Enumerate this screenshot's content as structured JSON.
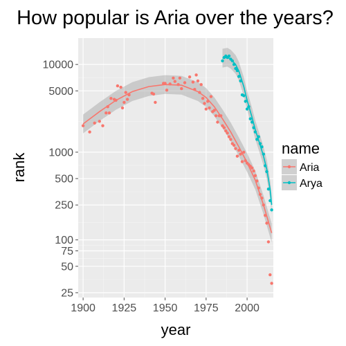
{
  "chart_data": {
    "type": "scatter",
    "title": "How popular is Aria over the years?",
    "xlabel": "year",
    "ylabel": "rank",
    "x_ticks": [
      1900,
      1925,
      1950,
      1975,
      2000
    ],
    "y_ticks": [
      25,
      50,
      75,
      100,
      250,
      500,
      1000,
      5000,
      10000
    ],
    "y_scale": "log",
    "xlim": [
      1897,
      2016
    ],
    "ylim": [
      22,
      20000
    ],
    "grid": true,
    "legend": {
      "title": "name",
      "position": "right"
    },
    "series": [
      {
        "name": "Aria",
        "color": "#F8766D",
        "points": [
          [
            1900,
            2000
          ],
          [
            1904,
            1700
          ],
          [
            1907,
            2150
          ],
          [
            1910,
            2250
          ],
          [
            1912,
            2000
          ],
          [
            1914,
            2800
          ],
          [
            1915,
            3300
          ],
          [
            1916,
            2800
          ],
          [
            1917,
            4100
          ],
          [
            1919,
            4000
          ],
          [
            1920,
            3900
          ],
          [
            1921,
            5700
          ],
          [
            1923,
            5500
          ],
          [
            1924,
            3200
          ],
          [
            1925,
            3700
          ],
          [
            1926,
            4800
          ],
          [
            1927,
            4000
          ],
          [
            1928,
            4500
          ],
          [
            1942,
            4700
          ],
          [
            1943,
            4600
          ],
          [
            1944,
            3700
          ],
          [
            1949,
            6100
          ],
          [
            1950,
            6100
          ],
          [
            1951,
            5100
          ],
          [
            1953,
            6000
          ],
          [
            1955,
            7000
          ],
          [
            1956,
            6400
          ],
          [
            1958,
            5900
          ],
          [
            1959,
            7000
          ],
          [
            1960,
            5300
          ],
          [
            1962,
            6200
          ],
          [
            1965,
            7200
          ],
          [
            1967,
            6300
          ],
          [
            1968,
            5200
          ],
          [
            1969,
            7600
          ],
          [
            1970,
            6500
          ],
          [
            1971,
            4800
          ],
          [
            1972,
            5900
          ],
          [
            1973,
            4100
          ],
          [
            1974,
            3600
          ],
          [
            1975,
            3100
          ],
          [
            1976,
            3800
          ],
          [
            1977,
            3200
          ],
          [
            1978,
            4300
          ],
          [
            1979,
            2900
          ],
          [
            1980,
            3000
          ],
          [
            1981,
            2600
          ],
          [
            1982,
            2200
          ],
          [
            1983,
            2600
          ],
          [
            1984,
            2600
          ],
          [
            1985,
            2000
          ],
          [
            1986,
            1900
          ],
          [
            1987,
            1750
          ],
          [
            1988,
            1650
          ],
          [
            1989,
            1500
          ],
          [
            1990,
            1400
          ],
          [
            1991,
            1250
          ],
          [
            1992,
            1200
          ],
          [
            1993,
            1100
          ],
          [
            1994,
            900
          ],
          [
            1995,
            1050
          ],
          [
            1996,
            950
          ],
          [
            1997,
            780
          ],
          [
            1998,
            1000
          ],
          [
            1999,
            800
          ],
          [
            2000,
            750
          ],
          [
            2001,
            720
          ],
          [
            2002,
            690
          ],
          [
            2003,
            660
          ],
          [
            2004,
            610
          ],
          [
            2005,
            540
          ],
          [
            2006,
            470
          ],
          [
            2007,
            390
          ],
          [
            2008,
            330
          ],
          [
            2009,
            300
          ],
          [
            2010,
            250
          ],
          [
            2011,
            190
          ],
          [
            2012,
            155
          ],
          [
            2013,
            95
          ],
          [
            2014,
            40
          ],
          [
            2015,
            32
          ]
        ],
        "trend": [
          [
            1900,
            2100
          ],
          [
            1910,
            2900
          ],
          [
            1920,
            3900
          ],
          [
            1930,
            4900
          ],
          [
            1940,
            5600
          ],
          [
            1950,
            5900
          ],
          [
            1960,
            5800
          ],
          [
            1970,
            4900
          ],
          [
            1975,
            4200
          ],
          [
            1980,
            3300
          ],
          [
            1985,
            2400
          ],
          [
            1990,
            1700
          ],
          [
            1995,
            1150
          ],
          [
            2000,
            760
          ],
          [
            2005,
            480
          ],
          [
            2010,
            250
          ],
          [
            2015,
            120
          ]
        ]
      },
      {
        "name": "Arya",
        "color": "#00BFC4",
        "points": [
          [
            1985,
            11000
          ],
          [
            1986,
            12000
          ],
          [
            1987,
            12500
          ],
          [
            1988,
            12000
          ],
          [
            1989,
            12500
          ],
          [
            1990,
            11500
          ],
          [
            1991,
            11000
          ],
          [
            1992,
            10000
          ],
          [
            1993,
            9000
          ],
          [
            1994,
            8500
          ],
          [
            1995,
            7300
          ],
          [
            1996,
            6500
          ],
          [
            1997,
            4500
          ],
          [
            1998,
            4400
          ],
          [
            1999,
            3800
          ],
          [
            2000,
            3100
          ],
          [
            2001,
            3300
          ],
          [
            2002,
            2400
          ],
          [
            2003,
            2200
          ],
          [
            2004,
            1900
          ],
          [
            2005,
            1700
          ],
          [
            2006,
            1400
          ],
          [
            2007,
            1500
          ],
          [
            2008,
            1250
          ],
          [
            2009,
            1150
          ],
          [
            2010,
            950
          ],
          [
            2011,
            700
          ],
          [
            2012,
            600
          ],
          [
            2013,
            380
          ],
          [
            2014,
            280
          ],
          [
            2015,
            220
          ]
        ],
        "trend": [
          [
            1985,
            11800
          ],
          [
            1988,
            12100
          ],
          [
            1990,
            11500
          ],
          [
            1993,
            10000
          ],
          [
            1995,
            8400
          ],
          [
            1998,
            5600
          ],
          [
            2000,
            3900
          ],
          [
            2003,
            2500
          ],
          [
            2005,
            1800
          ],
          [
            2008,
            1200
          ],
          [
            2010,
            900
          ],
          [
            2012,
            640
          ],
          [
            2014,
            380
          ],
          [
            2015,
            250
          ]
        ]
      }
    ]
  }
}
